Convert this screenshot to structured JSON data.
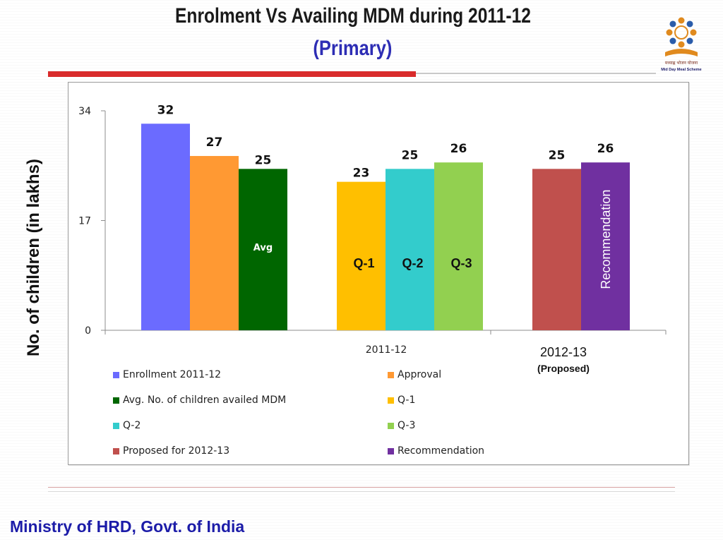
{
  "slide": {
    "title": "Enrolment Vs Availing MDM during  2011-12",
    "subtitle": "(Primary)",
    "footer": "Ministry of HRD, Govt. of India",
    "logo_text": "मध्याह्न भोजन योजना",
    "logo_caption": "Mid Day Meal Scheme"
  },
  "chart_data": {
    "type": "bar",
    "ylabel": "No. of children (in lakhs)",
    "ylim": [
      0,
      34
    ],
    "yticks": [
      0,
      17,
      34
    ],
    "grid": false,
    "legend_position": "bottom",
    "groups": [
      {
        "label": "2011-12",
        "sublabel": ""
      },
      {
        "label": "2012-13",
        "sublabel": "(Proposed)"
      }
    ],
    "series": [
      {
        "name": "Enrollment 2011-12",
        "value": 32,
        "group": 0,
        "color": "#6b6bff",
        "bar_label": ""
      },
      {
        "name": "Approval",
        "value": 27,
        "group": 0,
        "color": "#ff9933",
        "bar_label": ""
      },
      {
        "name": "Avg. No. of children availed MDM",
        "value": 25,
        "group": 0,
        "color": "#006600",
        "bar_label": "Avg"
      },
      {
        "name": "Q-1",
        "value": 23,
        "group": 0,
        "color": "#ffbf00",
        "bar_label": "Q-1"
      },
      {
        "name": "Q-2",
        "value": 25,
        "group": 0,
        "color": "#33cccc",
        "bar_label": "Q-2"
      },
      {
        "name": "Q-3",
        "value": 26,
        "group": 0,
        "color": "#92d050",
        "bar_label": "Q-3"
      },
      {
        "name": "Proposed for 2012-13",
        "value": 25,
        "group": 1,
        "color": "#c0504d",
        "bar_label": ""
      },
      {
        "name": "Recommendation",
        "value": 26,
        "group": 1,
        "color": "#7030a0",
        "bar_label": "Recommendation"
      }
    ]
  }
}
